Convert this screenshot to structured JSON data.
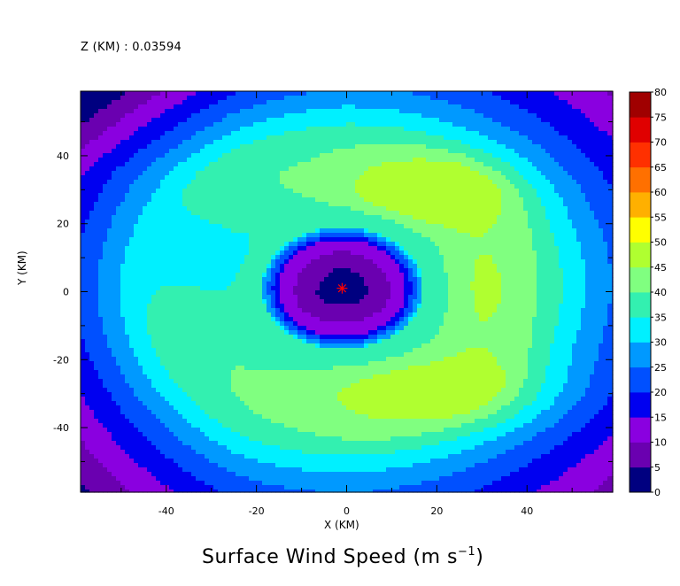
{
  "header": {
    "level_label": "Z (KM) : 0.03594"
  },
  "chart_data": {
    "type": "contour",
    "title": "Surface Wind Speed (m s",
    "title_exponent": "−1",
    "xlabel": "X (KM)",
    "ylabel": "Y (KM)",
    "xlim": [
      -59,
      59
    ],
    "ylim": [
      -59,
      59
    ],
    "x_ticks": [
      -40,
      -20,
      0,
      20,
      40
    ],
    "y_ticks": [
      -40,
      -20,
      0,
      20,
      40
    ],
    "colorbar": {
      "levels": [
        0,
        5,
        10,
        15,
        20,
        25,
        30,
        35,
        40,
        45,
        50,
        55,
        60,
        65,
        70,
        75,
        80
      ],
      "colors": [
        "#000080",
        "#6a00b0",
        "#8a00e0",
        "#0000f0",
        "#0050ff",
        "#0099ff",
        "#00f0ff",
        "#33f0b0",
        "#80ff80",
        "#b0ff30",
        "#ffff00",
        "#ffb000",
        "#ff7000",
        "#ff3000",
        "#e00000",
        "#a00000"
      ]
    },
    "storm_center": {
      "x": -1,
      "y": 1,
      "marker": "asterisk",
      "color": "#ff0000"
    },
    "wind_field": {
      "center": [
        -1,
        1
      ],
      "radius_max_wind_km": 18,
      "peak_speed": 46,
      "max_speed_region": {
        "x": 18,
        "y": 30
      },
      "secondary_max_region": {
        "x": 20,
        "y": -30
      }
    }
  }
}
